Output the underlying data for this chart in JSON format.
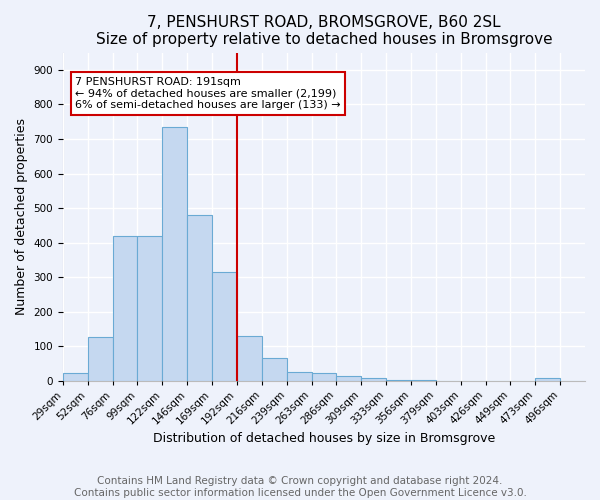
{
  "title": "7, PENSHURST ROAD, BROMSGROVE, B60 2SL",
  "subtitle": "Size of property relative to detached houses in Bromsgrove",
  "xlabel": "Distribution of detached houses by size in Bromsgrove",
  "ylabel": "Number of detached properties",
  "bin_edges_labels": [
    "29sqm",
    "52sqm",
    "76sqm",
    "99sqm",
    "122sqm",
    "146sqm",
    "169sqm",
    "192sqm",
    "216sqm",
    "239sqm",
    "263sqm",
    "286sqm",
    "309sqm",
    "333sqm",
    "356sqm",
    "379sqm",
    "403sqm",
    "426sqm",
    "449sqm",
    "473sqm",
    "496sqm"
  ],
  "bar_values": [
    22,
    125,
    420,
    420,
    735,
    480,
    315,
    130,
    65,
    25,
    22,
    13,
    8,
    3,
    2,
    0,
    0,
    0,
    0,
    8,
    0
  ],
  "bar_color": "#c5d8f0",
  "bar_edgecolor": "#6aaad4",
  "vline_index": 7,
  "vline_color": "#cc0000",
  "annotation_text": "7 PENSHURST ROAD: 191sqm\n← 94% of detached houses are smaller (2,199)\n6% of semi-detached houses are larger (133) →",
  "annotation_box_edgecolor": "#cc0000",
  "annotation_box_facecolor": "#ffffff",
  "ylim": [
    0,
    950
  ],
  "yticks": [
    0,
    100,
    200,
    300,
    400,
    500,
    600,
    700,
    800,
    900
  ],
  "footer": "Contains HM Land Registry data © Crown copyright and database right 2024.\nContains public sector information licensed under the Open Government Licence v3.0.",
  "background_color": "#eef2fb",
  "grid_color": "#ffffff",
  "title_fontsize": 11,
  "subtitle_fontsize": 10,
  "axis_fontsize": 9,
  "tick_fontsize": 7.5,
  "footer_fontsize": 7.5
}
